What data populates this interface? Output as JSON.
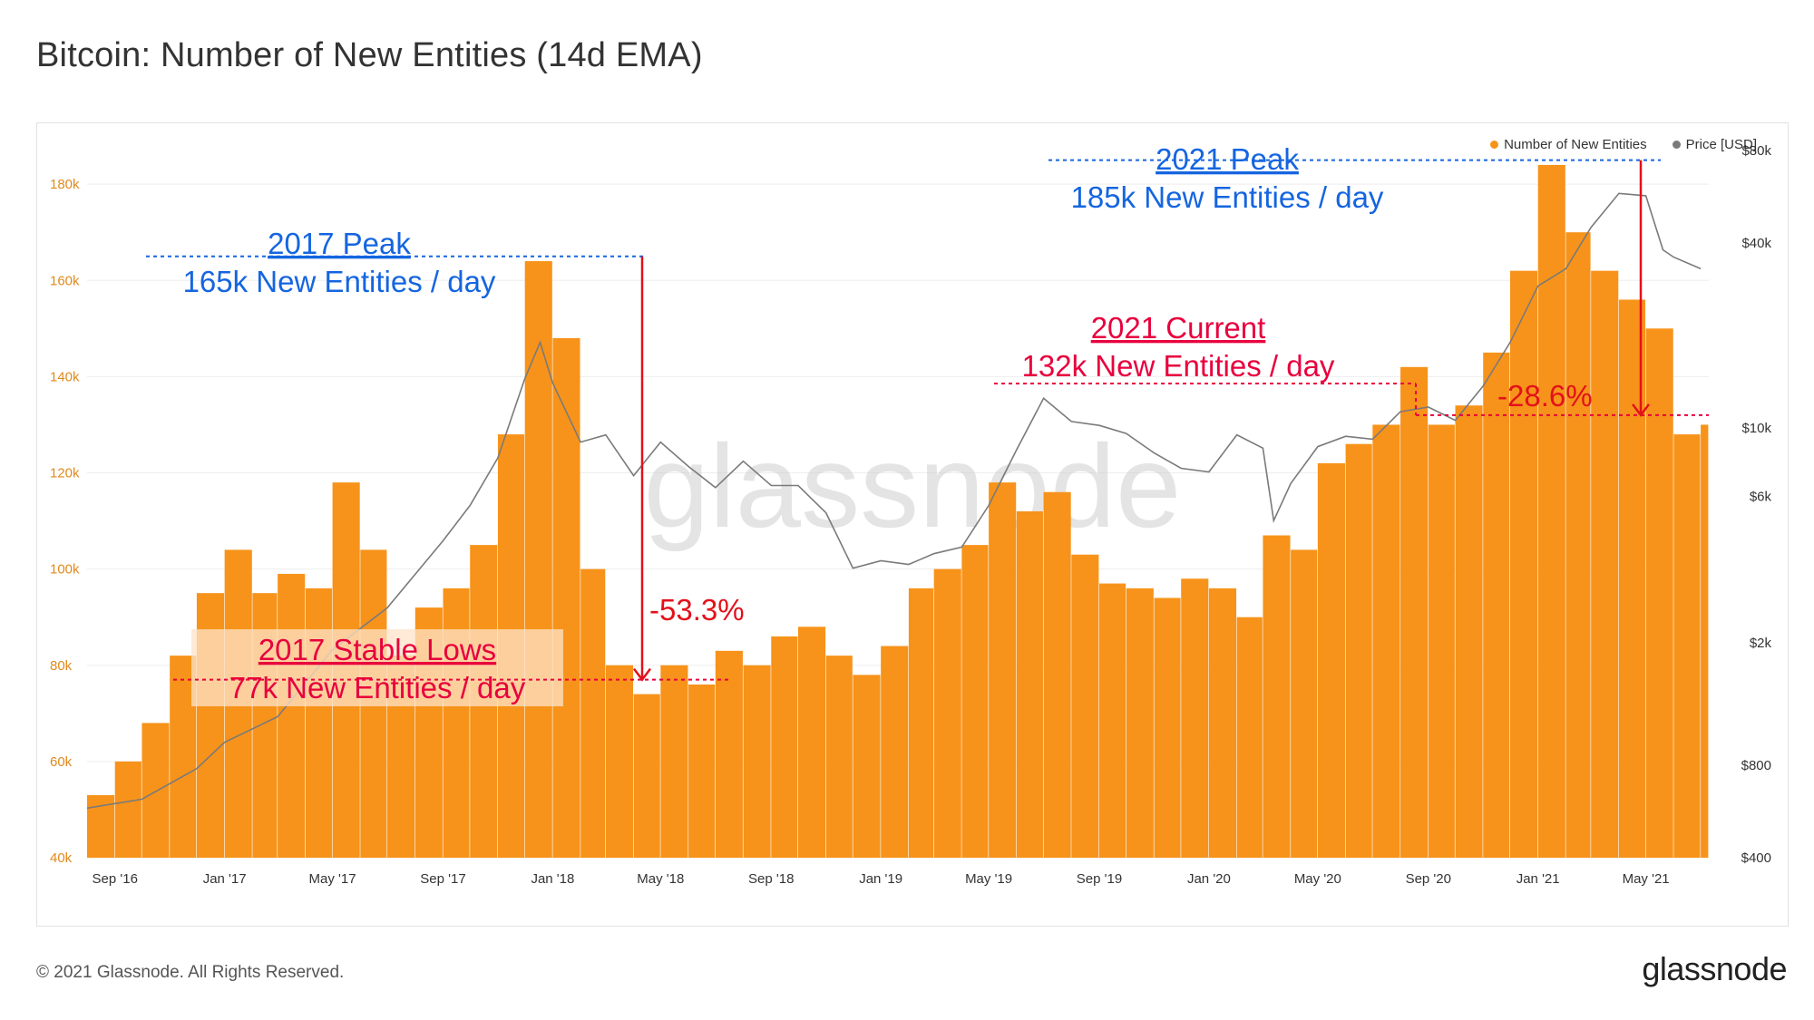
{
  "header": {
    "title": "Bitcoin: Number of New Entities (14d EMA)"
  },
  "footer": {
    "copyright": "© 2021 Glassnode. All Rights Reserved.",
    "logo": "glassnode"
  },
  "watermark": "glassnode",
  "colors": {
    "entities": "#f7931a",
    "price": "#7a7a7a",
    "blue_annotation": "#1565e0",
    "red_annotation": "#e8003d",
    "arrow": "#e3111a"
  },
  "chart_data": {
    "type": "bar",
    "x_ticks": [
      "Sep '16",
      "Jan '17",
      "May '17",
      "Sep '17",
      "Jan '18",
      "May '18",
      "Sep '18",
      "Jan '19",
      "May '19",
      "Sep '19",
      "Jan '20",
      "May '20",
      "Sep '20",
      "Jan '21",
      "May '21"
    ],
    "y_left": {
      "ticks": [
        "40k",
        "60k",
        "80k",
        "100k",
        "120k",
        "140k",
        "160k",
        "180k"
      ],
      "ylim": [
        40000,
        187000
      ]
    },
    "y_right": {
      "ticks": [
        "$400",
        "$800",
        "$2k",
        "$6k",
        "$10k",
        "$40k",
        "$80k"
      ],
      "scale": "log",
      "ylim": [
        400,
        80000
      ]
    },
    "legend": {
      "position": "top-right",
      "entries": [
        "Number of New Entities",
        "Price [USD]"
      ]
    },
    "series": [
      {
        "name": "Number of New Entities",
        "type": "bar",
        "axis": "left",
        "points": [
          [
            "2016-08-01",
            53000
          ],
          [
            "2016-09-01",
            60000
          ],
          [
            "2016-10-01",
            68000
          ],
          [
            "2016-11-01",
            82000
          ],
          [
            "2016-12-01",
            95000
          ],
          [
            "2017-01-01",
            104000
          ],
          [
            "2017-02-01",
            95000
          ],
          [
            "2017-03-01",
            99000
          ],
          [
            "2017-04-01",
            96000
          ],
          [
            "2017-05-01",
            118000
          ],
          [
            "2017-06-01",
            104000
          ],
          [
            "2017-07-01",
            82000
          ],
          [
            "2017-08-01",
            92000
          ],
          [
            "2017-09-01",
            96000
          ],
          [
            "2017-10-01",
            105000
          ],
          [
            "2017-11-01",
            128000
          ],
          [
            "2017-12-01",
            164000
          ],
          [
            "2018-01-01",
            148000
          ],
          [
            "2018-02-01",
            100000
          ],
          [
            "2018-03-01",
            80000
          ],
          [
            "2018-04-01",
            74000
          ],
          [
            "2018-05-01",
            80000
          ],
          [
            "2018-06-01",
            76000
          ],
          [
            "2018-07-01",
            83000
          ],
          [
            "2018-08-01",
            80000
          ],
          [
            "2018-09-01",
            86000
          ],
          [
            "2018-10-01",
            88000
          ],
          [
            "2018-11-01",
            82000
          ],
          [
            "2018-12-01",
            78000
          ],
          [
            "2019-01-01",
            84000
          ],
          [
            "2019-02-01",
            96000
          ],
          [
            "2019-03-01",
            100000
          ],
          [
            "2019-04-01",
            105000
          ],
          [
            "2019-05-01",
            118000
          ],
          [
            "2019-06-01",
            112000
          ],
          [
            "2019-07-01",
            116000
          ],
          [
            "2019-08-01",
            103000
          ],
          [
            "2019-09-01",
            97000
          ],
          [
            "2019-10-01",
            96000
          ],
          [
            "2019-11-01",
            94000
          ],
          [
            "2019-12-01",
            98000
          ],
          [
            "2020-01-01",
            96000
          ],
          [
            "2020-02-01",
            90000
          ],
          [
            "2020-03-01",
            107000
          ],
          [
            "2020-04-01",
            104000
          ],
          [
            "2020-05-01",
            122000
          ],
          [
            "2020-06-01",
            126000
          ],
          [
            "2020-07-01",
            130000
          ],
          [
            "2020-08-01",
            142000
          ],
          [
            "2020-09-01",
            130000
          ],
          [
            "2020-10-01",
            134000
          ],
          [
            "2020-11-01",
            145000
          ],
          [
            "2020-12-01",
            162000
          ],
          [
            "2021-01-01",
            184000
          ],
          [
            "2021-02-01",
            170000
          ],
          [
            "2021-03-01",
            162000
          ],
          [
            "2021-04-01",
            156000
          ],
          [
            "2021-05-01",
            150000
          ],
          [
            "2021-06-01",
            128000
          ],
          [
            "2021-07-01",
            130000
          ]
        ]
      },
      {
        "name": "Price [USD]",
        "type": "line",
        "axis": "right",
        "points": [
          [
            "2016-08-01",
            580
          ],
          [
            "2016-10-01",
            620
          ],
          [
            "2016-12-01",
            780
          ],
          [
            "2017-01-01",
            950
          ],
          [
            "2017-03-01",
            1150
          ],
          [
            "2017-05-01",
            1900
          ],
          [
            "2017-07-01",
            2600
          ],
          [
            "2017-09-01",
            4300
          ],
          [
            "2017-10-01",
            5600
          ],
          [
            "2017-11-01",
            8000
          ],
          [
            "2017-12-01",
            14500
          ],
          [
            "2017-12-18",
            19000
          ],
          [
            "2018-01-01",
            14000
          ],
          [
            "2018-02-01",
            9000
          ],
          [
            "2018-03-01",
            9500
          ],
          [
            "2018-04-01",
            7000
          ],
          [
            "2018-05-01",
            9000
          ],
          [
            "2018-06-01",
            7500
          ],
          [
            "2018-07-01",
            6400
          ],
          [
            "2018-08-01",
            7800
          ],
          [
            "2018-09-01",
            6500
          ],
          [
            "2018-10-01",
            6500
          ],
          [
            "2018-11-01",
            5300
          ],
          [
            "2018-12-01",
            3500
          ],
          [
            "2019-01-01",
            3700
          ],
          [
            "2019-02-01",
            3600
          ],
          [
            "2019-03-01",
            3900
          ],
          [
            "2019-04-01",
            4100
          ],
          [
            "2019-05-01",
            5600
          ],
          [
            "2019-06-01",
            8500
          ],
          [
            "2019-07-01",
            12500
          ],
          [
            "2019-08-01",
            10500
          ],
          [
            "2019-09-01",
            10200
          ],
          [
            "2019-10-01",
            9600
          ],
          [
            "2019-11-01",
            8300
          ],
          [
            "2019-12-01",
            7400
          ],
          [
            "2020-01-01",
            7200
          ],
          [
            "2020-02-01",
            9500
          ],
          [
            "2020-03-01",
            8600
          ],
          [
            "2020-03-13",
            5000
          ],
          [
            "2020-04-01",
            6600
          ],
          [
            "2020-05-01",
            8700
          ],
          [
            "2020-06-01",
            9400
          ],
          [
            "2020-07-01",
            9200
          ],
          [
            "2020-08-01",
            11300
          ],
          [
            "2020-09-01",
            11700
          ],
          [
            "2020-10-01",
            10600
          ],
          [
            "2020-11-01",
            13700
          ],
          [
            "2020-12-01",
            19000
          ],
          [
            "2021-01-01",
            29000
          ],
          [
            "2021-02-01",
            33000
          ],
          [
            "2021-03-01",
            45000
          ],
          [
            "2021-04-01",
            58000
          ],
          [
            "2021-05-01",
            57000
          ],
          [
            "2021-05-20",
            38000
          ],
          [
            "2021-06-01",
            36000
          ],
          [
            "2021-07-01",
            33000
          ]
        ]
      }
    ],
    "annotations": [
      {
        "id": "peak_2017",
        "line1": "2017 Peak",
        "line2": "165k New Entities / day",
        "color": "blue"
      },
      {
        "id": "peak_2021",
        "line1": "2021 Peak",
        "line2": "185k New Entities / day",
        "color": "blue"
      },
      {
        "id": "current_2021",
        "line1": "2021 Current",
        "line2": "132k New Entities / day",
        "color": "red"
      },
      {
        "id": "lows_2017",
        "line1": "2017 Stable Lows",
        "line2": "77k New Entities / day",
        "color": "red"
      },
      {
        "id": "drop_2018",
        "text": "-53.3%"
      },
      {
        "id": "drop_2021",
        "text": "-28.6%"
      }
    ]
  }
}
